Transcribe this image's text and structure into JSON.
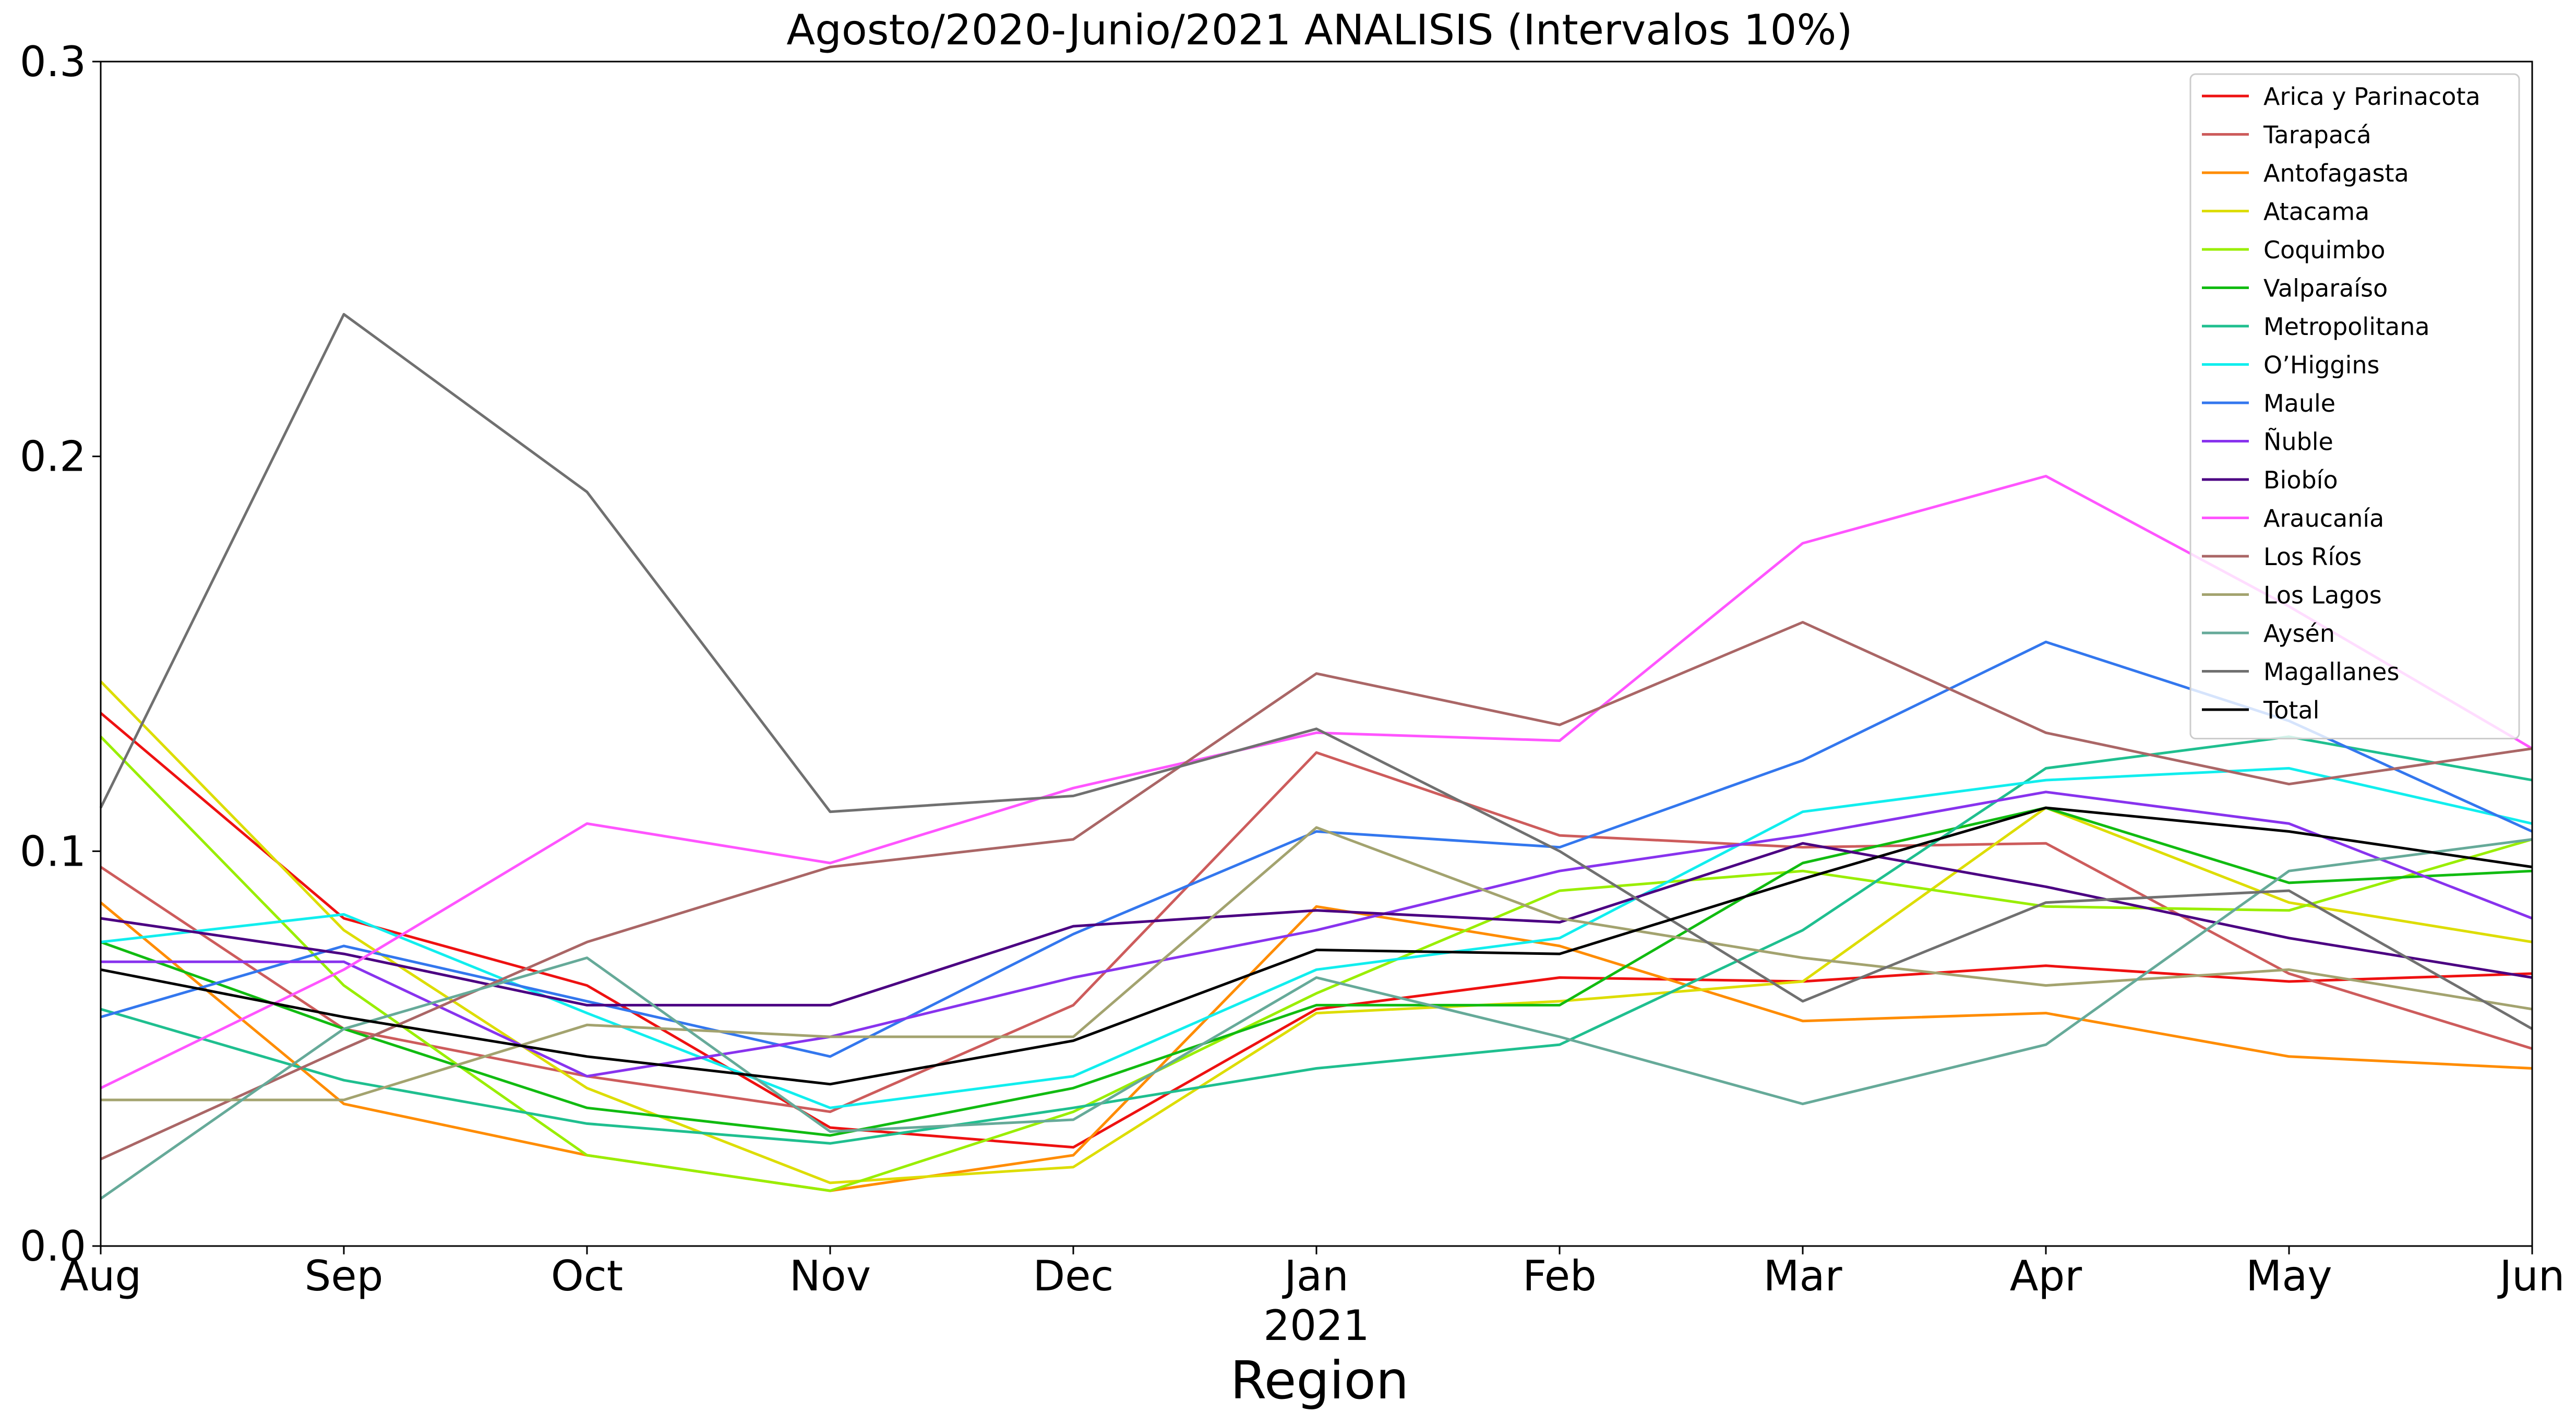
{
  "chart_data": {
    "type": "line",
    "title": "Agosto/2020-Junio/2021 ANALISIS (Intervalos 10%)",
    "xlabel": "Region",
    "ylabel": "",
    "x": [
      "Aug",
      "Sep",
      "Oct",
      "Nov",
      "Dec",
      "Jan",
      "Feb",
      "Mar",
      "Apr",
      "May",
      "Jun"
    ],
    "x_year_label": "2021",
    "x_year_label_under": "Jan",
    "ylim": [
      0.0,
      0.3
    ],
    "yticks": [
      0.0,
      0.1,
      0.2,
      0.3
    ],
    "ytick_labels": [
      "0.0",
      "0.1",
      "0.2",
      "0.3"
    ],
    "grid": false,
    "legend_position": "top-right",
    "series": [
      {
        "name": "Arica y Parinacota",
        "color": "#ee1111",
        "values": [
          0.135,
          0.083,
          0.066,
          0.03,
          0.025,
          0.06,
          0.068,
          0.067,
          0.071,
          0.067,
          0.069
        ]
      },
      {
        "name": "Tarapacá",
        "color": "#cd5c5c",
        "values": [
          0.096,
          0.055,
          0.043,
          0.034,
          0.061,
          0.125,
          0.104,
          0.101,
          0.102,
          0.069,
          0.05
        ]
      },
      {
        "name": "Antofagasta",
        "color": "#ff8c00",
        "values": [
          0.087,
          0.036,
          0.023,
          0.014,
          0.023,
          0.086,
          0.076,
          0.057,
          0.059,
          0.048,
          0.045
        ]
      },
      {
        "name": "Atacama",
        "color": "#dddd00",
        "values": [
          0.143,
          0.08,
          0.04,
          0.016,
          0.02,
          0.059,
          0.062,
          0.067,
          0.111,
          0.087,
          0.077
        ]
      },
      {
        "name": "Coquimbo",
        "color": "#99ee00",
        "values": [
          0.129,
          0.066,
          0.023,
          0.014,
          0.034,
          0.064,
          0.09,
          0.095,
          0.086,
          0.085,
          0.103
        ]
      },
      {
        "name": "Valparaíso",
        "color": "#11bb11",
        "values": [
          0.077,
          0.055,
          0.035,
          0.028,
          0.04,
          0.061,
          0.061,
          0.097,
          0.111,
          0.092,
          0.095
        ]
      },
      {
        "name": "Metropolitana",
        "color": "#1fbf8f",
        "values": [
          0.06,
          0.042,
          0.031,
          0.026,
          0.035,
          0.045,
          0.051,
          0.08,
          0.121,
          0.129,
          0.118
        ]
      },
      {
        "name": "O’Higgins",
        "color": "#11eeee",
        "values": [
          0.077,
          0.084,
          0.059,
          0.035,
          0.043,
          0.07,
          0.078,
          0.11,
          0.118,
          0.121,
          0.107
        ]
      },
      {
        "name": "Maule",
        "color": "#3377ee",
        "values": [
          0.058,
          0.076,
          0.062,
          0.048,
          0.079,
          0.105,
          0.101,
          0.123,
          0.153,
          0.133,
          0.105
        ]
      },
      {
        "name": "Ñuble",
        "color": "#8833ee",
        "values": [
          0.072,
          0.072,
          0.043,
          0.053,
          0.068,
          0.08,
          0.095,
          0.104,
          0.115,
          0.107,
          0.083
        ]
      },
      {
        "name": "Biobío",
        "color": "#4b0082",
        "values": [
          0.083,
          0.074,
          0.061,
          0.061,
          0.081,
          0.085,
          0.082,
          0.102,
          0.091,
          0.078,
          0.068
        ]
      },
      {
        "name": "Araucanía",
        "color": "#ff55ff",
        "values": [
          0.04,
          0.07,
          0.107,
          0.097,
          0.116,
          0.13,
          0.128,
          0.178,
          0.195,
          0.162,
          0.126
        ]
      },
      {
        "name": "Los Ríos",
        "color": "#aa6666",
        "values": [
          0.022,
          0.05,
          0.077,
          0.096,
          0.103,
          0.145,
          0.132,
          0.158,
          0.13,
          0.117,
          0.126
        ]
      },
      {
        "name": "Los Lagos",
        "color": "#a3a36f",
        "values": [
          0.037,
          0.037,
          0.056,
          0.053,
          0.053,
          0.106,
          0.083,
          0.073,
          0.066,
          0.07,
          0.06
        ]
      },
      {
        "name": "Aysén",
        "color": "#66aa99",
        "values": [
          0.012,
          0.055,
          0.073,
          0.029,
          0.032,
          0.068,
          0.053,
          0.036,
          0.051,
          0.095,
          0.103
        ]
      },
      {
        "name": "Magallanes",
        "color": "#707070",
        "values": [
          0.111,
          0.236,
          0.191,
          0.11,
          0.114,
          0.131,
          0.1,
          0.062,
          0.087,
          0.09,
          0.055
        ]
      },
      {
        "name": "Total",
        "color": "#000000",
        "values": [
          0.07,
          0.058,
          0.048,
          0.041,
          0.052,
          0.075,
          0.074,
          0.093,
          0.111,
          0.105,
          0.096
        ]
      }
    ]
  }
}
